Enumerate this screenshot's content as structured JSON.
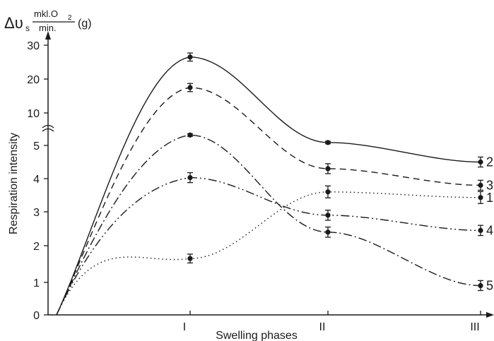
{
  "unit_label": {
    "prefix": "Δυ",
    "subscript": "s",
    "numerator": "mkl.O",
    "numerator_sub": "2",
    "denominator": "min.",
    "suffix": "(g)"
  },
  "chart_data": {
    "type": "line",
    "xlabel": "Swelling phases",
    "ylabel": "Respiration intensity",
    "categories": [
      "I",
      "II",
      "III"
    ],
    "y_ticks_lower": [
      "0",
      "1",
      "2",
      "3",
      "4",
      "5"
    ],
    "y_ticks_upper": [
      "10",
      "20",
      "30"
    ],
    "y_scale": "broken axis: 0–5 linear, break, 10–30 compressed",
    "ylim": [
      0,
      30
    ],
    "grid": false,
    "legend": "labels at right end of each line",
    "series": [
      {
        "name": "2",
        "dash": "solid",
        "values": [
          26.5,
          5.45,
          4.5
        ],
        "errors": [
          1.2,
          0.2,
          0.15
        ]
      },
      {
        "name": "3",
        "dash": "dashed",
        "values": [
          17.5,
          4.3,
          3.8
        ],
        "errors": [
          1.2,
          0.15,
          0.15
        ]
      },
      {
        "name": "1",
        "dash": "dotted",
        "values": [
          1.65,
          3.6,
          3.43
        ],
        "errors": [
          0.12,
          0.18,
          0.18
        ]
      },
      {
        "name": "4",
        "dash": "dash-dot-dot",
        "values": [
          4.03,
          2.9,
          2.45
        ],
        "errors": [
          0.15,
          0.15,
          0.15
        ]
      },
      {
        "name": "5",
        "dash": "dash-dot",
        "values": [
          6.6,
          2.4,
          0.9
        ],
        "errors": [
          0.2,
          0.15,
          0.15
        ]
      }
    ]
  }
}
